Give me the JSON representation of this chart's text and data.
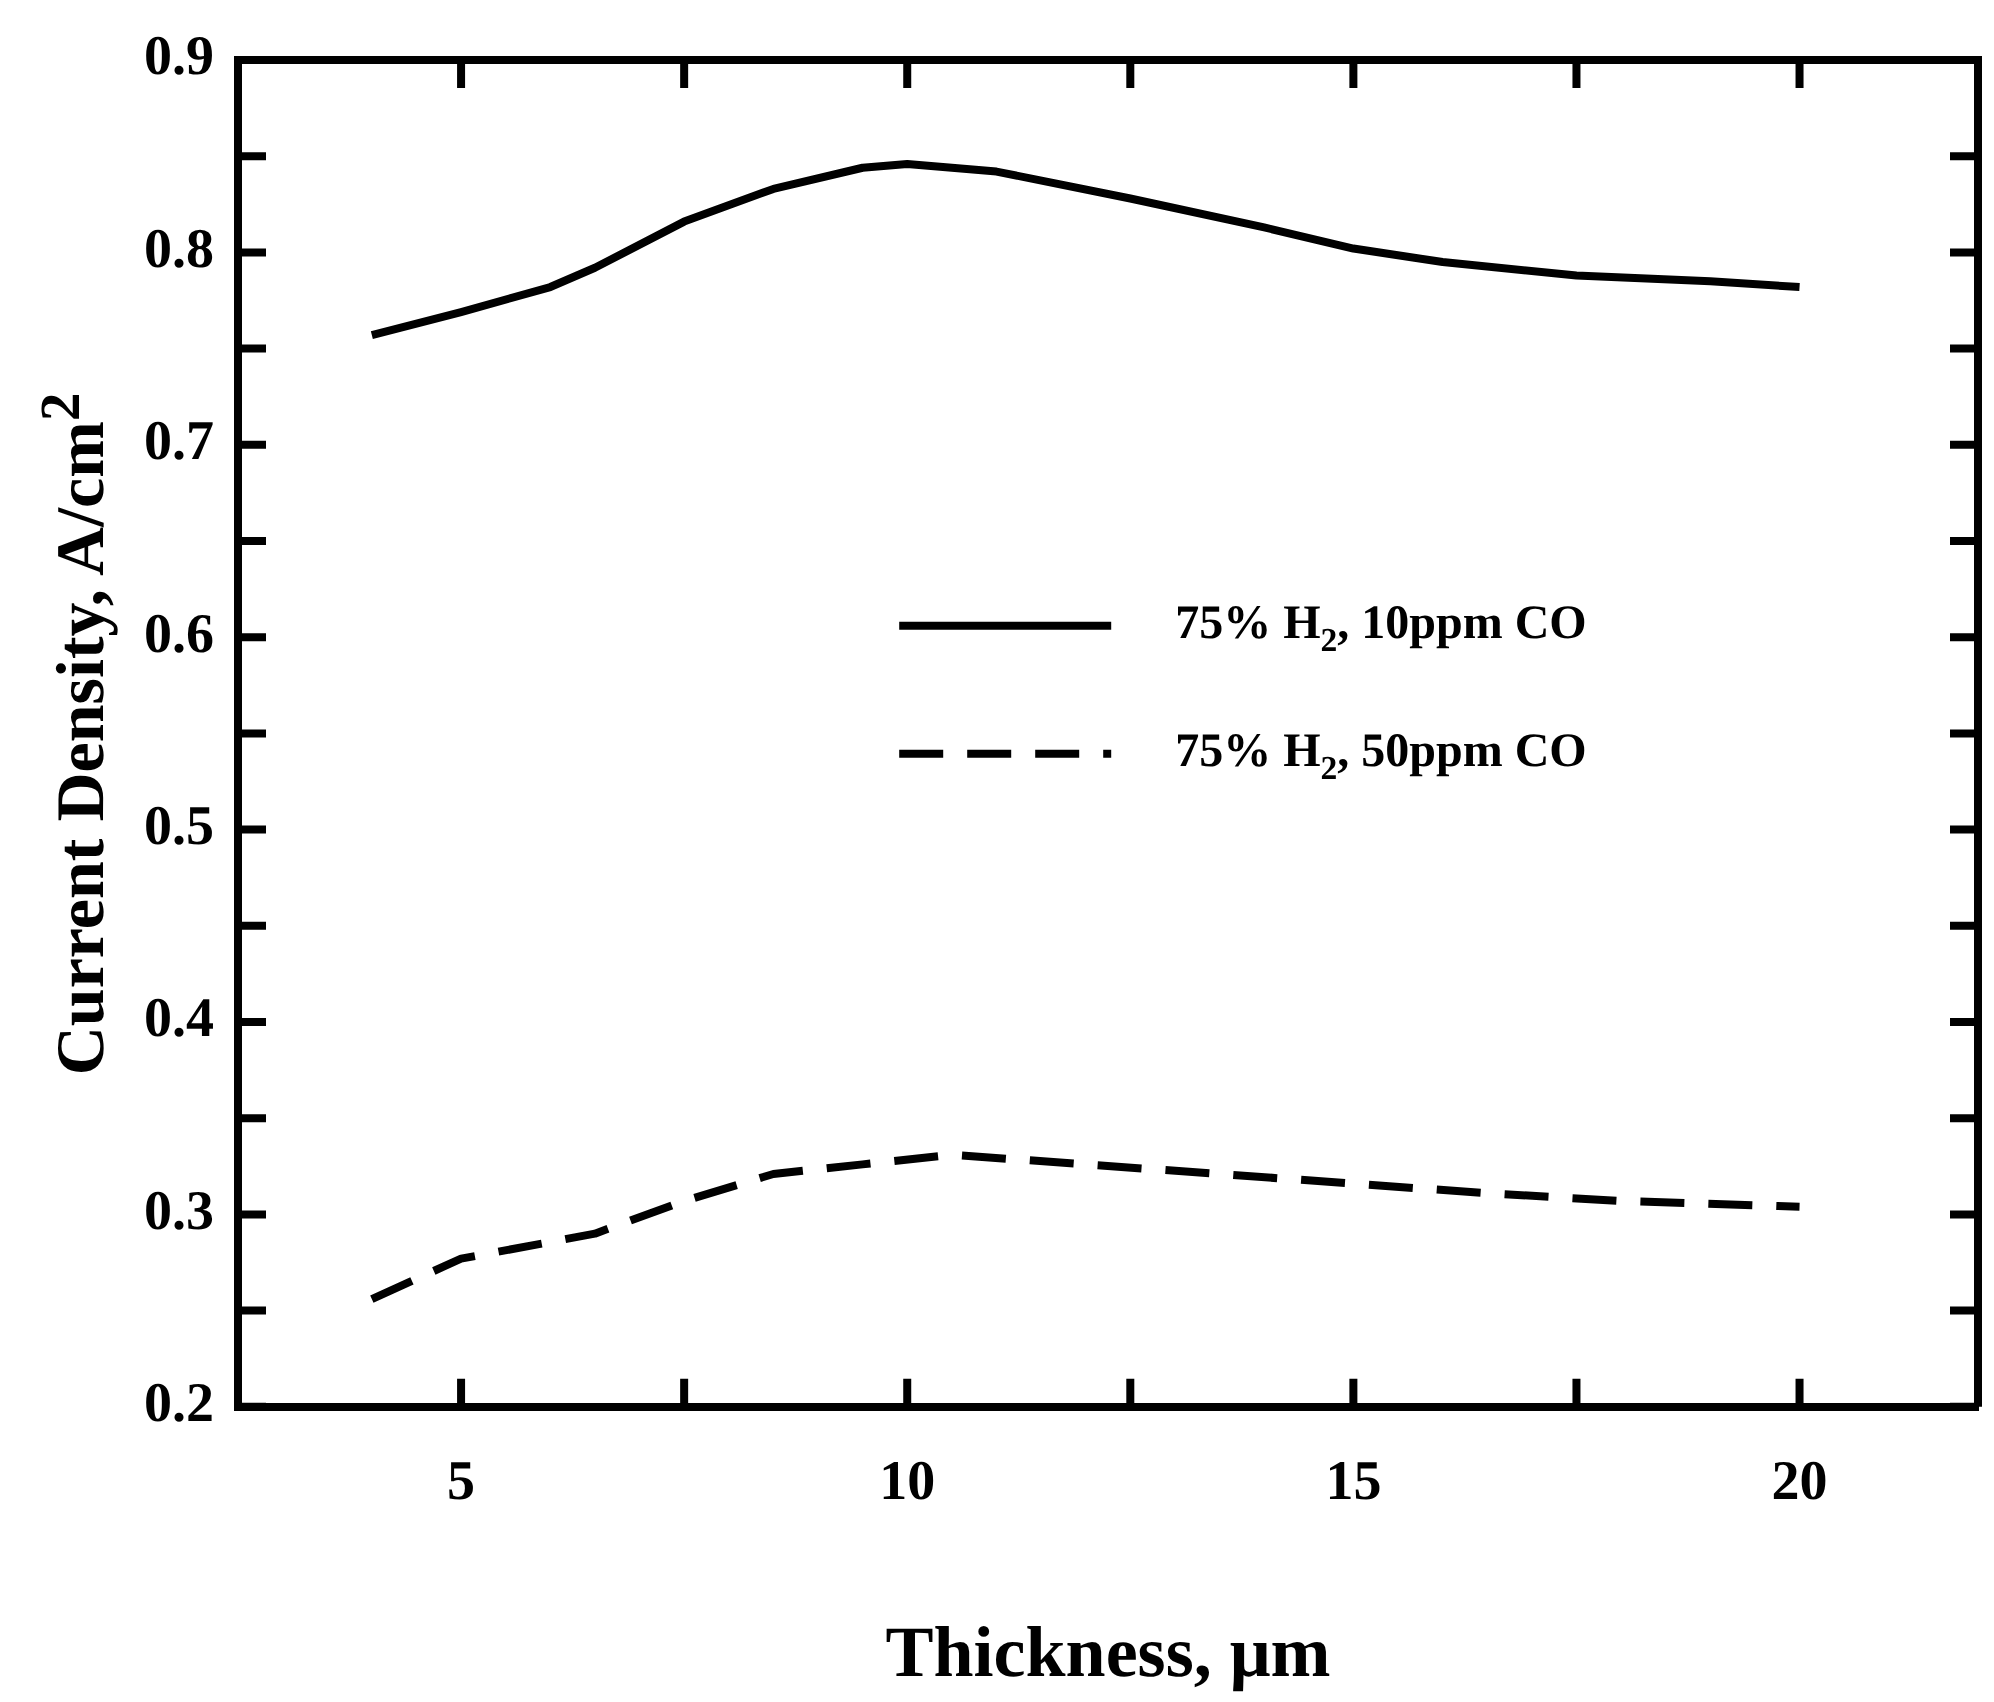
{
  "chart_data": {
    "type": "line",
    "xlabel": "Thickness, μm",
    "ylabel": "Current Density, A/cm$^{2}$",
    "xlim": [
      2.5,
      22
    ],
    "xticks": [
      5,
      {
        "value": 7.5,
        "label": null
      },
      10,
      {
        "value": 12.5,
        "label": null
      },
      15,
      {
        "value": 17.5,
        "label": null
      },
      20
    ],
    "ylim": [
      0.2,
      0.9
    ],
    "yticks": [
      0.2,
      {
        "value": 0.25,
        "label": null
      },
      0.3,
      {
        "value": 0.35,
        "label": null
      },
      0.4,
      {
        "value": 0.45,
        "label": null
      },
      0.5,
      {
        "value": 0.55,
        "label": null
      },
      0.6,
      {
        "value": 0.65,
        "label": null
      },
      0.7,
      {
        "value": 0.75,
        "label": null
      },
      0.8,
      {
        "value": 0.85,
        "label": null
      },
      0.9
    ],
    "grid": false,
    "legend": "right",
    "marker": "none",
    "series": [
      {
        "name": "75% H$_{2}$, 10ppm CO",
        "color": "#000000",
        "line_style": "solid",
        "x": [
          4,
          5,
          6,
          6.5,
          7.5,
          8.5,
          9.5,
          10,
          11,
          12.5,
          14,
          15,
          16,
          17.5,
          19,
          20
        ],
        "values": [
          0.757,
          0.769,
          0.782,
          0.792,
          0.816,
          0.833,
          0.844,
          0.846,
          0.842,
          0.828,
          0.813,
          0.802,
          0.795,
          0.788,
          0.785,
          0.782
        ]
      },
      {
        "name": "75% H$_{2}$, 50ppm CO",
        "color": "#000000",
        "line_style": "dashed",
        "x": [
          4,
          5,
          6.5,
          7.5,
          8.5,
          9.5,
          10.5,
          12,
          13.5,
          15,
          16.5,
          18,
          20
        ],
        "values": [
          0.256,
          0.277,
          0.29,
          0.307,
          0.321,
          0.326,
          0.331,
          0.326,
          0.321,
          0.316,
          0.311,
          0.307,
          0.304
        ]
      }
    ]
  }
}
